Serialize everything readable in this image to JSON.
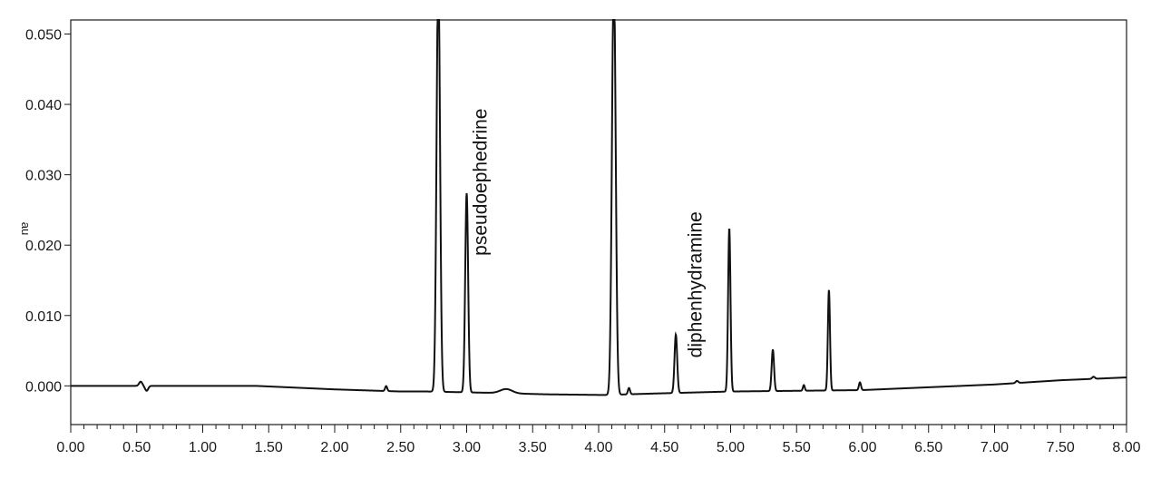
{
  "chart_data": {
    "type": "line",
    "ylabel": "au",
    "xlim": [
      0.0,
      8.0
    ],
    "ylim": [
      -0.0055,
      0.052
    ],
    "x_ticks": [
      "0.00",
      "0.50",
      "1.00",
      "1.50",
      "2.00",
      "2.50",
      "3.00",
      "3.50",
      "4.00",
      "4.50",
      "5.00",
      "5.50",
      "6.00",
      "6.50",
      "7.00",
      "7.50",
      "8.00"
    ],
    "y_ticks": [
      "0.000",
      "0.010",
      "0.020",
      "0.030",
      "0.040",
      "0.050"
    ],
    "grid": false,
    "annotations": [
      {
        "text": "pseudoephedrine",
        "x": 3.15,
        "y": 0.0185
      },
      {
        "text": "diphenhydramine",
        "x": 4.78,
        "y": 0.004
      }
    ],
    "baseline": [
      [
        0,
        0
      ],
      [
        0.45,
        0
      ],
      [
        1.4,
        0
      ],
      [
        2.0,
        -0.0005
      ],
      [
        2.5,
        -0.0008
      ],
      [
        2.7,
        -0.0008
      ],
      [
        3.2,
        -0.001
      ],
      [
        3.6,
        -0.0012
      ],
      [
        4.05,
        -0.0013
      ],
      [
        4.4,
        -0.0011
      ],
      [
        5.0,
        -0.0008
      ],
      [
        6.0,
        -0.0006
      ],
      [
        6.5,
        -0.0002
      ],
      [
        7.0,
        0.0002
      ],
      [
        7.5,
        0.0008
      ],
      [
        8.0,
        0.0012
      ]
    ],
    "peaks": [
      {
        "rt": 2.785,
        "height": 0.06,
        "width": 0.013
      },
      {
        "rt": 3.0,
        "height": 0.0283,
        "width": 0.011
      },
      {
        "rt": 4.115,
        "height": 0.06,
        "width": 0.014
      },
      {
        "rt": 4.585,
        "height": 0.0083,
        "width": 0.01
      },
      {
        "rt": 4.99,
        "height": 0.0232,
        "width": 0.009
      },
      {
        "rt": 5.32,
        "height": 0.0059,
        "width": 0.009
      },
      {
        "rt": 5.745,
        "height": 0.0143,
        "width": 0.008
      },
      {
        "rt": 5.98,
        "height": 0.0011,
        "width": 0.008
      },
      {
        "rt": 5.555,
        "height": 0.0008,
        "width": 0.007
      },
      {
        "rt": 3.3,
        "height": 0.0006,
        "width": 0.045
      },
      {
        "rt": 4.23,
        "height": 0.0009,
        "width": 0.008
      },
      {
        "rt": 2.39,
        "height": 0.0007,
        "width": 0.008
      },
      {
        "rt": 0.53,
        "height": 0.0006,
        "width": 0.012
      },
      {
        "rt": 0.575,
        "height": -0.0007,
        "width": 0.012
      },
      {
        "rt": 7.17,
        "height": 0.0003,
        "width": 0.01
      },
      {
        "rt": 7.75,
        "height": 0.0003,
        "width": 0.01
      }
    ]
  }
}
